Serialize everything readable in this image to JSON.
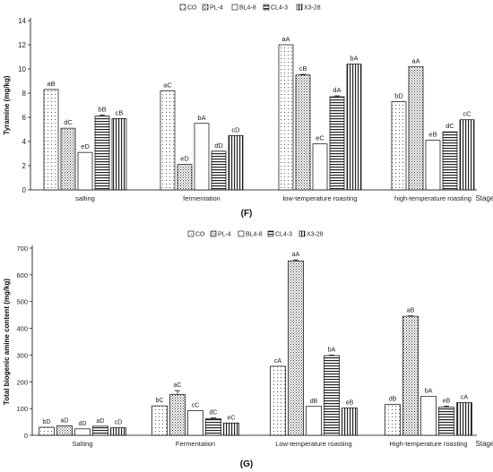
{
  "chart_data": [
    {
      "type": "bar",
      "panel_label": "(F)",
      "categories": [
        "salting",
        "fermentation",
        "low-temperature roasting",
        "high-temperature roasting"
      ],
      "xlabel": "Stage",
      "ylabel": "Tyramine (mg/kg)",
      "ylim": [
        0,
        14
      ],
      "yticks": [
        0,
        2,
        4,
        6,
        8,
        10,
        12,
        14
      ],
      "legend_position": "top-center",
      "series": [
        {
          "name": "CO",
          "pattern": "dots-sparse",
          "values": [
            8.3,
            8.2,
            12.0,
            7.3
          ],
          "errors": [
            0,
            0,
            0,
            0
          ],
          "labels": [
            "aB",
            "aC",
            "aA",
            "bD"
          ]
        },
        {
          "name": "PL-4",
          "pattern": "dots-dense",
          "values": [
            5.1,
            2.1,
            9.5,
            10.2
          ],
          "errors": [
            0,
            0,
            0.05,
            0
          ],
          "labels": [
            "dC",
            "eD",
            "cB",
            "aA"
          ]
        },
        {
          "name": "BL4-8",
          "pattern": "blank",
          "values": [
            3.1,
            5.5,
            3.8,
            4.1
          ],
          "errors": [
            0,
            0,
            0,
            0
          ],
          "labels": [
            "eD",
            "bA",
            "eC",
            "eB"
          ]
        },
        {
          "name": "CL4-3",
          "pattern": "horizontal",
          "values": [
            6.1,
            3.2,
            7.7,
            4.8
          ],
          "errors": [
            0.1,
            0,
            0.08,
            0
          ],
          "labels": [
            "bB",
            "dD",
            "dA",
            "dC"
          ]
        },
        {
          "name": "X3-28",
          "pattern": "vertical",
          "values": [
            5.9,
            4.5,
            10.4,
            5.8
          ],
          "errors": [
            0,
            0,
            0,
            0
          ],
          "labels": [
            "cB",
            "cD",
            "bA",
            "cC"
          ]
        }
      ]
    },
    {
      "type": "bar",
      "panel_label": "(G)",
      "categories": [
        "Salting",
        "Fermentation",
        "Low-temperature roasting",
        "High-temperature roasting"
      ],
      "xlabel": "Stage",
      "ylabel": "Total biogenic amine content (mg/kg)",
      "ylim": [
        0,
        700
      ],
      "yticks": [
        0,
        100,
        200,
        300,
        400,
        500,
        600,
        700
      ],
      "legend_position": "top-center",
      "series": [
        {
          "name": "CO",
          "pattern": "dots-sparse",
          "values": [
            30,
            110,
            258,
            115
          ],
          "errors": [
            0,
            0,
            0,
            0
          ],
          "labels": [
            "bD",
            "bC",
            "cA",
            "dB"
          ]
        },
        {
          "name": "PL-4",
          "pattern": "dots-dense",
          "values": [
            35,
            152,
            652,
            445
          ],
          "errors": [
            0,
            15,
            4,
            2
          ],
          "labels": [
            "aD",
            "aC",
            "aA",
            "aB"
          ]
        },
        {
          "name": "BL4-8",
          "pattern": "blank",
          "values": [
            24,
            92,
            108,
            145
          ],
          "errors": [
            0,
            0,
            0,
            0
          ],
          "labels": [
            "dD",
            "cC",
            "dB",
            "bA"
          ]
        },
        {
          "name": "CL4-3",
          "pattern": "horizontal",
          "values": [
            34,
            62,
            298,
            105
          ],
          "errors": [
            0,
            3,
            2,
            4
          ],
          "labels": [
            "aD",
            "dC",
            "bA",
            "eB"
          ]
        },
        {
          "name": "X3-28",
          "pattern": "vertical",
          "values": [
            28,
            46,
            102,
            122
          ],
          "errors": [
            0,
            0,
            0,
            0
          ],
          "labels": [
            "cD",
            "eC",
            "eB",
            "cA"
          ]
        }
      ]
    }
  ]
}
